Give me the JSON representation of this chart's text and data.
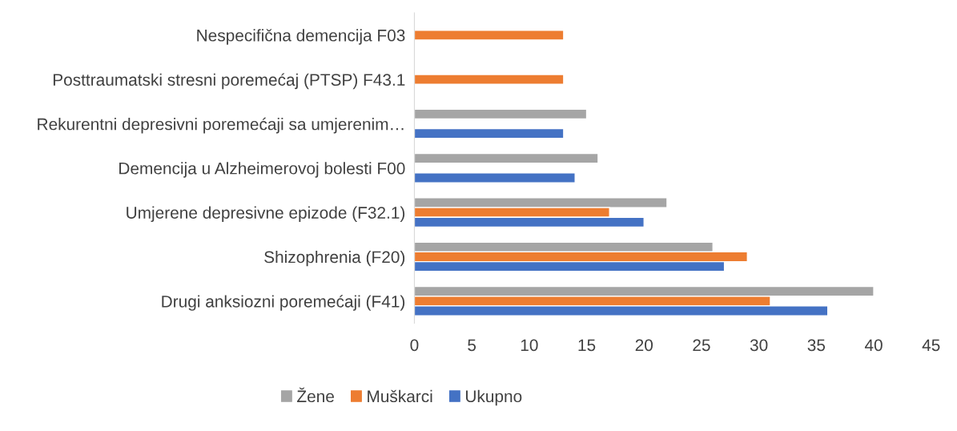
{
  "chart_data": {
    "type": "bar",
    "orientation": "horizontal",
    "categories": [
      "Nespecifična demencija F03",
      "Posttraumatski stresni poremećaj (PTSP) F43.1",
      "Rekurentni depresivni poremećaji sa umjerenim…",
      "Demencija u Alzheimerovoj bolesti F00",
      "Umjerene depresivne epizode (F32.1)",
      "Shizophrenia (F20)",
      "Drugi anksiozni poremećaji (F41)"
    ],
    "series": [
      {
        "name": "Žene",
        "color": "#a5a5a5",
        "values": [
          null,
          null,
          15,
          16,
          22,
          26,
          40
        ]
      },
      {
        "name": "Muškarci",
        "color": "#ed7d31",
        "values": [
          13,
          13,
          null,
          null,
          17,
          29,
          31
        ]
      },
      {
        "name": "Ukupno",
        "color": "#4472c4",
        "values": [
          null,
          null,
          13,
          14,
          20,
          27,
          36
        ]
      }
    ],
    "xlim": [
      0,
      45
    ],
    "xticks": [
      0,
      5,
      10,
      15,
      20,
      25,
      30,
      35,
      40,
      45
    ],
    "grid": false,
    "legend": "bottom"
  }
}
